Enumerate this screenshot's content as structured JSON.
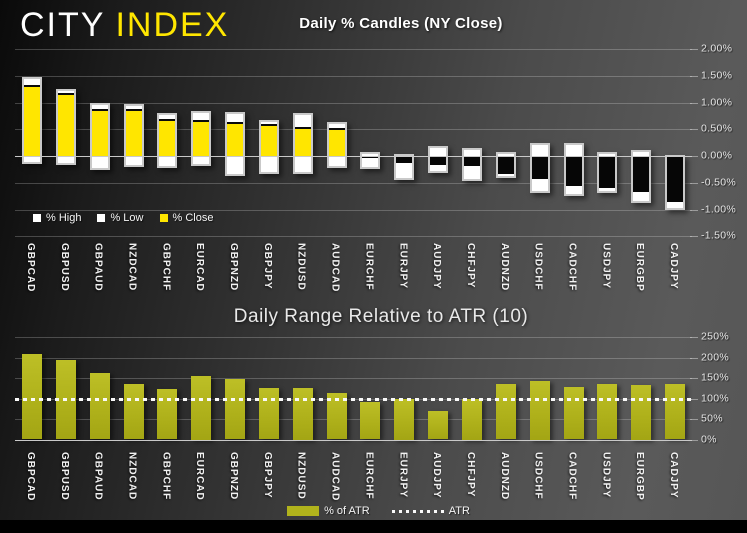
{
  "header": {
    "logo_city": "CITY",
    "logo_index": "INDEX"
  },
  "colors": {
    "accent_yellow": "#ffe600",
    "candle_up": "#ffe600",
    "candle_down": "#000000",
    "candle_range_white": "#ffffff",
    "atr_bar_olive": "#b1b31c",
    "atr_dotted_line": "#fafafa",
    "background_dark": "#1b1b1b",
    "background_light": "#5a5a5a"
  },
  "chart_data": [
    {
      "id": "top",
      "type": "bar",
      "subtype": "daily-percent-candles",
      "title": "Daily % Candles (NY Close)",
      "legend": [
        "% High",
        "% Low",
        "% Close"
      ],
      "legend_position": "bottom-left",
      "grid": true,
      "ylim": [
        -1.5,
        2.0
      ],
      "yticks": [
        "2.00%",
        "1.50%",
        "1.00%",
        "0.50%",
        "0.00%",
        "-0.50%",
        "-1.00%",
        "-1.50%"
      ],
      "ytick_values": [
        2.0,
        1.5,
        1.0,
        0.5,
        0.0,
        -0.5,
        -1.0,
        -1.5
      ],
      "categories": [
        "GBPCAD",
        "GBPUSD",
        "GBPAUD",
        "NZDCAD",
        "GBPCHF",
        "EURCAD",
        "GBPNZD",
        "GBPJPY",
        "NZDUSD",
        "AUDCAD",
        "EURCHF",
        "EURJPY",
        "AUDJPY",
        "CHFJPY",
        "AUDNZD",
        "USDCHF",
        "CADCHF",
        "USDJPY",
        "EURGBP",
        "CADJPY"
      ],
      "series": [
        {
          "name": "% High",
          "values": [
            1.47,
            1.25,
            0.99,
            0.98,
            0.81,
            0.84,
            0.82,
            0.67,
            0.81,
            0.63,
            0.08,
            0.04,
            0.19,
            0.15,
            0.08,
            0.24,
            0.25,
            0.08,
            0.11,
            0.02
          ]
        },
        {
          "name": "% Low",
          "values": [
            -0.15,
            -0.17,
            -0.26,
            -0.2,
            -0.23,
            -0.19,
            -0.38,
            -0.34,
            -0.34,
            -0.23,
            -0.25,
            -0.45,
            -0.31,
            -0.46,
            -0.41,
            -0.7,
            -0.74,
            -0.69,
            -0.88,
            -1.01
          ]
        },
        {
          "name": "% Close",
          "values": [
            1.33,
            1.17,
            0.88,
            0.87,
            0.69,
            0.68,
            0.63,
            0.59,
            0.54,
            0.52,
            -0.03,
            -0.13,
            -0.17,
            -0.19,
            -0.33,
            -0.44,
            -0.57,
            -0.59,
            -0.67,
            -0.84
          ]
        }
      ]
    },
    {
      "id": "bottom",
      "type": "bar",
      "title": "Daily Range Relative to ATR (10)",
      "legend": [
        "% of ATR",
        "ATR"
      ],
      "legend_position": "bottom-center",
      "grid": true,
      "ylim": [
        0,
        250
      ],
      "yticks": [
        "250%",
        "200%",
        "150%",
        "100%",
        "50%",
        "0%"
      ],
      "ytick_values": [
        250,
        200,
        150,
        100,
        50,
        0
      ],
      "categories": [
        "GBPCAD",
        "GBPUSD",
        "GBPAUD",
        "NZDCAD",
        "GBPCHF",
        "EURCAD",
        "GBPNZD",
        "GBPJPY",
        "NZDUSD",
        "AUDCAD",
        "EURCHF",
        "EURJPY",
        "AUDJPY",
        "CHFJPY",
        "AUDNZD",
        "USDCHF",
        "CADCHF",
        "USDJPY",
        "EURGBP",
        "CADJPY"
      ],
      "series": [
        {
          "name": "% of ATR",
          "values": [
            208,
            193,
            162,
            135,
            123,
            156,
            147,
            126,
            125,
            114,
            91,
            100,
            70,
            100,
            136,
            144,
            129,
            136,
            133,
            135
          ]
        }
      ],
      "reference_line": {
        "name": "ATR",
        "value": 100,
        "style": "dotted"
      }
    }
  ]
}
